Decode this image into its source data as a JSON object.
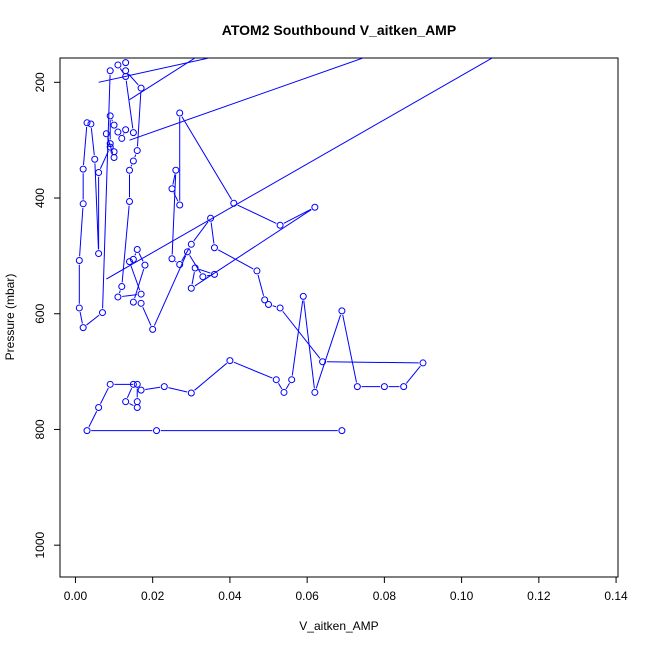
{
  "chart_data": {
    "type": "line",
    "title": "ATOM2 Southbound V_aitken_AMP",
    "xlabel": "V_aitken_AMP",
    "ylabel": "Pressure (mbar)",
    "xlim": [
      -0.004,
      0.1405
    ],
    "ylim": [
      1055,
      158
    ],
    "y_reversed": true,
    "x_ticks": [
      0.0,
      0.02,
      0.04,
      0.06,
      0.08,
      0.1,
      0.12,
      0.14
    ],
    "x_tick_labels": [
      "0.00",
      "0.02",
      "0.04",
      "0.06",
      "0.08",
      "0.10",
      "0.12",
      "0.14"
    ],
    "y_ticks": [
      200,
      400,
      600,
      800,
      1000
    ],
    "y_tick_labels": [
      "200",
      "400",
      "600",
      "800",
      "1000"
    ],
    "grid": false,
    "legend": "none",
    "color": "#0000ff",
    "series": [
      {
        "marker": "open-circle",
        "points": [
          [
            0.069,
            802
          ],
          [
            0.021,
            802
          ],
          [
            0.003,
            802
          ],
          [
            0.006,
            762
          ],
          [
            0.009,
            722
          ],
          [
            0.016,
            722
          ],
          [
            0.016,
            752
          ],
          [
            0.016,
            762
          ],
          [
            0.013,
            752
          ],
          [
            0.015,
            722
          ],
          [
            0.017,
            732
          ],
          [
            0.023,
            726
          ],
          [
            0.03,
            737
          ],
          [
            0.04,
            681
          ],
          [
            0.052,
            714
          ],
          [
            0.054,
            736
          ],
          [
            0.056,
            714
          ],
          [
            0.059,
            570
          ],
          [
            0.062,
            736
          ],
          [
            0.069,
            595
          ],
          [
            0.073,
            726
          ],
          [
            0.08,
            726
          ],
          [
            0.085,
            726
          ],
          [
            0.09,
            685
          ],
          [
            0.064,
            683
          ],
          [
            0.053,
            590
          ],
          [
            0.05,
            584
          ],
          [
            0.049,
            576
          ],
          [
            0.047,
            526
          ],
          [
            0.036,
            486
          ],
          [
            0.035,
            435
          ],
          [
            0.03,
            480
          ],
          [
            0.027,
            515
          ],
          [
            0.025,
            505
          ],
          [
            0.026,
            352
          ],
          [
            0.025,
            384
          ],
          [
            0.027,
            412
          ],
          [
            0.027,
            253
          ],
          [
            0.041,
            409
          ],
          [
            0.053,
            447
          ],
          [
            0.062,
            416
          ],
          [
            0.03,
            556
          ],
          [
            0.031,
            521
          ],
          [
            0.036,
            532
          ],
          [
            0.033,
            536
          ],
          [
            0.029,
            493
          ],
          [
            0.02,
            627
          ],
          [
            0.017,
            582
          ],
          [
            0.015,
            580
          ],
          [
            0.018,
            516
          ],
          [
            0.016,
            489
          ],
          [
            0.015,
            506
          ],
          [
            0.014,
            510
          ],
          [
            0.017,
            566
          ],
          [
            0.011,
            571
          ],
          [
            0.012,
            553
          ],
          [
            0.014,
            406
          ],
          [
            0.014,
            352
          ],
          [
            0.015,
            336
          ],
          [
            0.016,
            318
          ],
          [
            0.017,
            210
          ],
          [
            0.013,
            180
          ],
          [
            0.013,
            166
          ],
          [
            0.011,
            170
          ],
          [
            0.013,
            190
          ],
          [
            0.015,
            287
          ],
          [
            0.013,
            282
          ],
          [
            0.012,
            297
          ],
          [
            0.011,
            286
          ],
          [
            0.01,
            274
          ],
          [
            0.009,
            258
          ],
          [
            0.009,
            306
          ],
          [
            0.008,
            289
          ],
          [
            0.01,
            330
          ],
          [
            0.01,
            320
          ],
          [
            0.009,
            312
          ],
          [
            0.006,
            356
          ],
          [
            0.006,
            496
          ],
          [
            0.005,
            333
          ],
          [
            0.004,
            272
          ],
          [
            0.003,
            270
          ],
          [
            0.002,
            350
          ],
          [
            0.002,
            410
          ],
          [
            0.001,
            508
          ],
          [
            0.001,
            590
          ],
          [
            0.002,
            624
          ],
          [
            0.007,
            598
          ],
          [
            0.009,
            180
          ]
        ]
      }
    ],
    "offscale_segments": [
      [
        [
          0.014,
          300
        ],
        [
          0.08,
          145
        ]
      ],
      [
        [
          0.008,
          540
        ],
        [
          0.11,
          150
        ]
      ],
      [
        [
          0.006,
          200
        ],
        [
          0.04,
          150
        ]
      ],
      [
        [
          0.014,
          230
        ],
        [
          0.034,
          145
        ]
      ]
    ]
  }
}
